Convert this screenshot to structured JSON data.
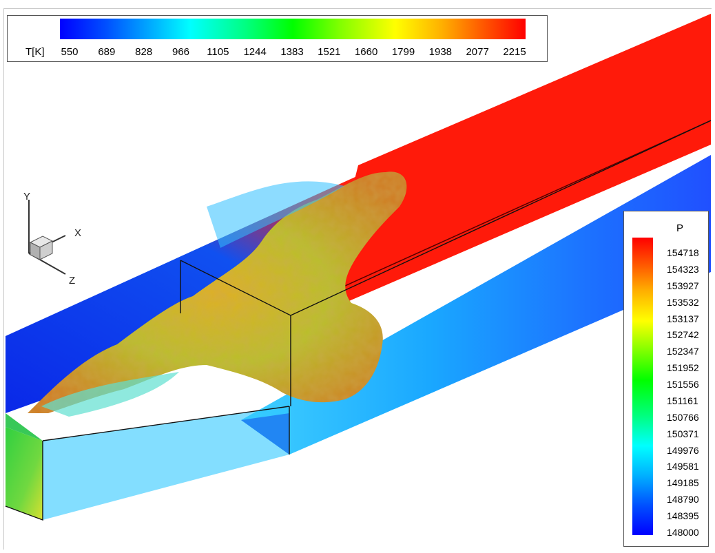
{
  "temperature_legend": {
    "label": "T[K]",
    "ticks": [
      "550",
      "689",
      "828",
      "966",
      "1105",
      "1244",
      "1383",
      "1521",
      "1660",
      "1799",
      "1938",
      "2077",
      "2215"
    ]
  },
  "pressure_legend": {
    "title": "P",
    "ticks": [
      "154718",
      "154323",
      "153927",
      "153532",
      "153137",
      "152742",
      "152347",
      "151952",
      "151556",
      "151161",
      "150766",
      "150371",
      "149976",
      "149581",
      "149185",
      "148790",
      "148395",
      "148000"
    ]
  },
  "axes_triad": {
    "y": "Y",
    "x": "X",
    "z": "Z"
  },
  "colors": {
    "hot": "#ff1a0a",
    "cold": "#0a2cf0",
    "cool": "#1a9cff",
    "flame": "#c8c020",
    "inlet": "#40d040"
  },
  "scene": {
    "description_icon": "combustion-simulation-render"
  }
}
